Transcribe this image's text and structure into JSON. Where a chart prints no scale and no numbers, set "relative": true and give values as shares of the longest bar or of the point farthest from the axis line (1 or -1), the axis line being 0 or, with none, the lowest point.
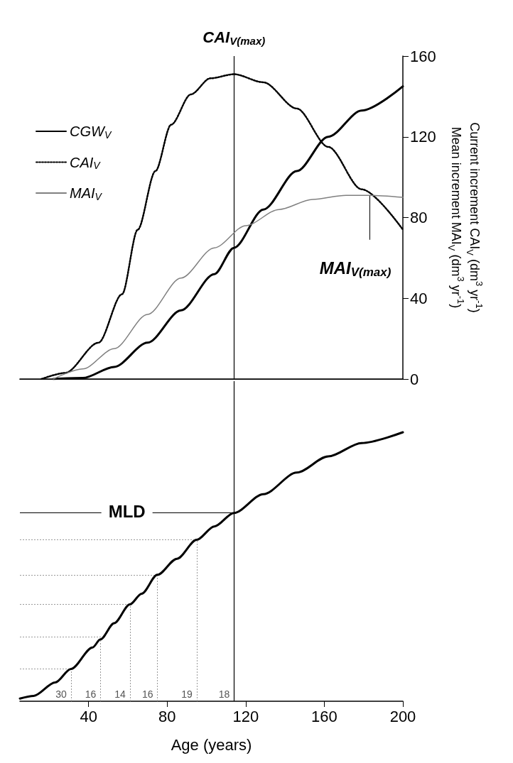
{
  "chart_data": [
    {
      "type": "line",
      "ylabel": "Current increment CAI$_{V}$ (dm$^{3}$ yr$^{-1}$)\nMean increment MAI$_{V}$ (dm$^{3}$ yr$^{-1}$)",
      "xlim": [
        5,
        200
      ],
      "ylim": [
        0,
        160
      ],
      "yticks": [
        0,
        40,
        80,
        120,
        160
      ],
      "tick_labels": "y",
      "legend": "top left",
      "marker": "none",
      "series": [
        {
          "name": "CGW$_{V}$",
          "color": "#000000",
          "line_style": "solid",
          "x": [
            22,
            37,
            53,
            70,
            87,
            104,
            114,
            129,
            146,
            162,
            179,
            200
          ],
          "values": [
            0,
            0.5,
            6,
            18,
            34,
            52,
            65,
            84,
            103,
            120,
            133,
            145
          ]
        },
        {
          "name": "CAI$_{V}$",
          "color": "#000000",
          "line_style": "dotted",
          "x": [
            16,
            28,
            45,
            57,
            65,
            74,
            82,
            92,
            102,
            114,
            129,
            146,
            162,
            179,
            200
          ],
          "values": [
            0,
            3,
            18,
            42,
            74,
            103,
            126,
            141,
            149,
            151,
            147,
            134,
            115,
            94,
            74
          ]
        },
        {
          "name": "MAI$_{V}$",
          "color": "#808080",
          "line_style": "solid",
          "x": [
            22,
            37,
            53,
            70,
            87,
            104,
            120,
            137,
            154,
            171,
            183,
            200
          ],
          "values": [
            0,
            5,
            15,
            32,
            50,
            65,
            76,
            84,
            89,
            91,
            91,
            90
          ]
        }
      ],
      "ref_lines": [
        {
          "axis": "x",
          "value": 114,
          "label": "CAI$_{V(max)}$",
          "color": "#000000",
          "line_style": "solid"
        }
      ],
      "annotations": [
        {
          "text": "MAI$_{V(max)}$",
          "x": 183,
          "y": 91
        }
      ]
    },
    {
      "type": "line",
      "relative": true,
      "xlabel": "Age (years)",
      "xlim": [
        5,
        200
      ],
      "xticks": [
        40,
        80,
        120,
        160,
        200
      ],
      "tick_labels": "x",
      "marker": "none",
      "x": [
        5,
        12,
        23,
        31,
        42,
        46,
        53,
        61,
        67,
        75,
        85,
        95,
        104,
        114,
        129,
        146,
        162,
        179,
        200
      ],
      "series": [
        {
          "color": "#000000",
          "line_style": "solid",
          "values": [
            0.01,
            0.02,
            0.07,
            0.12,
            0.2,
            0.23,
            0.29,
            0.36,
            0.4,
            0.47,
            0.53,
            0.6,
            0.65,
            0.7,
            0.77,
            0.85,
            0.91,
            0.96,
            1
          ]
        }
      ],
      "ref_lines": [
        {
          "axis": "y",
          "value": 0.7,
          "label": "MLD",
          "color": "#000000",
          "line_style": "solid"
        },
        {
          "axis": "y",
          "value": 0.12,
          "color": "#999999",
          "line_style": "dotted"
        },
        {
          "axis": "y",
          "value": 0.24,
          "color": "#999999",
          "line_style": "dotted"
        },
        {
          "axis": "y",
          "value": 0.36,
          "color": "#999999",
          "line_style": "dotted"
        },
        {
          "axis": "y",
          "value": 0.47,
          "color": "#999999",
          "line_style": "dotted"
        },
        {
          "axis": "y",
          "value": 0.6,
          "color": "#999999",
          "line_style": "dotted"
        },
        {
          "axis": "x",
          "value": 31,
          "color": "#999999",
          "line_style": "dotted"
        },
        {
          "axis": "x",
          "value": 46,
          "color": "#999999",
          "line_style": "dotted"
        },
        {
          "axis": "x",
          "value": 61,
          "color": "#999999",
          "line_style": "dotted"
        },
        {
          "axis": "x",
          "value": 75,
          "color": "#999999",
          "line_style": "dotted"
        },
        {
          "axis": "x",
          "value": 95,
          "color": "#999999",
          "line_style": "dotted"
        },
        {
          "axis": "x",
          "value": 114,
          "color": "#000000",
          "line_style": "solid"
        }
      ],
      "annotations": [
        "30",
        "16",
        "14",
        "16",
        "19",
        "18"
      ]
    }
  ]
}
